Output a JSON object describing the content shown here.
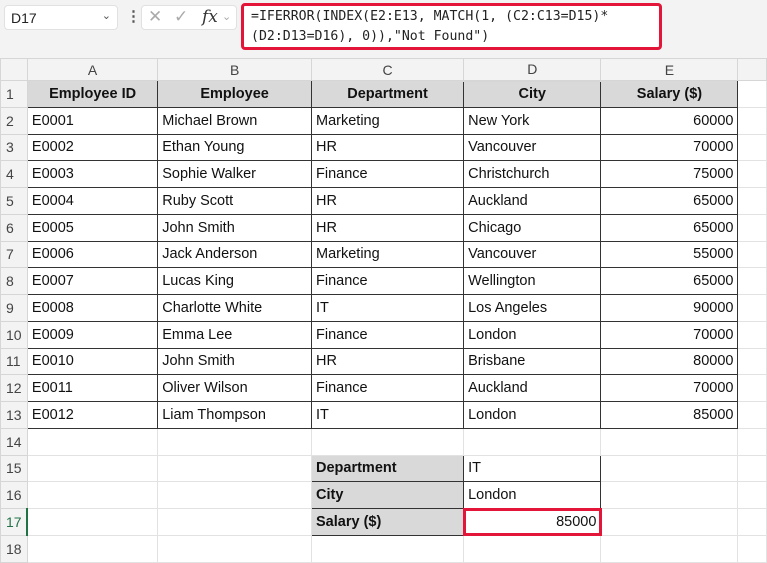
{
  "name_box": "D17",
  "formula": "=IFERROR(INDEX(E2:E13, MATCH(1, (C2:C13=D15)*(D2:D13=D16), 0)),\"Not Found\")",
  "formula_line1": "=IFERROR(INDEX(E2:E13, MATCH(1, (C2:C13=D15)*",
  "formula_line2": "(D2:D13=D16), 0)),\"Not Found\")",
  "columns": [
    "A",
    "B",
    "C",
    "D",
    "E"
  ],
  "headers": [
    "Employee ID",
    "Employee",
    "Department",
    "City",
    "Salary ($)"
  ],
  "rows": [
    [
      "E0001",
      "Michael Brown",
      "Marketing",
      "New York",
      "60000"
    ],
    [
      "E0002",
      "Ethan Young",
      "HR",
      "Vancouver",
      "70000"
    ],
    [
      "E0003",
      "Sophie Walker",
      "Finance",
      "Christchurch",
      "75000"
    ],
    [
      "E0004",
      "Ruby Scott",
      "HR",
      "Auckland",
      "65000"
    ],
    [
      "E0005",
      "John Smith",
      "HR",
      "Chicago",
      "65000"
    ],
    [
      "E0006",
      "Jack Anderson",
      "Marketing",
      "Vancouver",
      "55000"
    ],
    [
      "E0007",
      "Lucas King",
      "Finance",
      "Wellington",
      "65000"
    ],
    [
      "E0008",
      "Charlotte White",
      "IT",
      "Los Angeles",
      "90000"
    ],
    [
      "E0009",
      "Emma Lee",
      "Finance",
      "London",
      "70000"
    ],
    [
      "E0010",
      "John Smith",
      "HR",
      "Brisbane",
      "80000"
    ],
    [
      "E0011",
      "Oliver Wilson",
      "Finance",
      "Auckland",
      "70000"
    ],
    [
      "E0012",
      "Liam Thompson",
      "IT",
      "London",
      "85000"
    ]
  ],
  "lookup": [
    {
      "label": "Department",
      "value": "IT"
    },
    {
      "label": "City",
      "value": "London"
    },
    {
      "label": "Salary ($)",
      "value": "85000"
    }
  ],
  "selected_color": "#217346",
  "highlight_color": "#e3163a"
}
